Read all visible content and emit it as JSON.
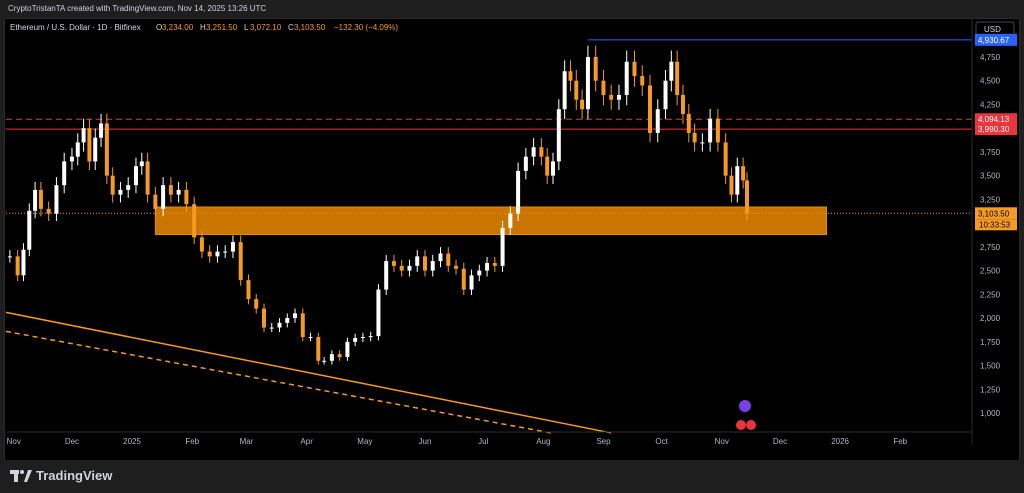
{
  "header": {
    "caption": "CryptoTristanTA created with TradingView.com, Nov 14, 2025 13:26 UTC"
  },
  "legend": {
    "symbol": "Ethereum / U.S. Dollar · 1D · Bitfinex",
    "o_label": "O",
    "o": "3,234.00",
    "h_label": "H",
    "h": "3,251.50",
    "l_label": "L",
    "l": "3,072.10",
    "c_label": "C",
    "c": "3,103.50",
    "change": "−132.30 (−4.09%)"
  },
  "currency": "USD",
  "footer": {
    "brand": "TradingView"
  },
  "colors": {
    "up": "#ffffff",
    "down": "#f59a23",
    "zone": "#c97500",
    "red_line": "#e8363c",
    "blue_line": "#2962ff",
    "trend": "#f59a23",
    "price_badge": "#f59a23",
    "red_badge": "#e8363c",
    "blue_badge": "#2962ff"
  },
  "chart_data": {
    "type": "candlestick",
    "y_ticks": [
      1000,
      1250,
      1500,
      1750,
      2000,
      2250,
      2500,
      2750,
      3000,
      3250,
      3500,
      3750,
      4000,
      4250,
      4500,
      4750
    ],
    "y_range": [
      800,
      5150
    ],
    "x_labels": [
      "Nov",
      "Dec",
      "2025",
      "Feb",
      "Mar",
      "Apr",
      "May",
      "Jun",
      "Jul",
      "Aug",
      "Sep",
      "Oct",
      "Nov",
      "Dec",
      "2026",
      "Feb"
    ],
    "x_label_dates": [
      "2024-11-01",
      "2024-12-01",
      "2025-01-01",
      "2025-02-01",
      "2025-03-01",
      "2025-04-01",
      "2025-05-01",
      "2025-06-01",
      "2025-07-01",
      "2025-08-01",
      "2025-09-01",
      "2025-10-01",
      "2025-11-01",
      "2025-12-01",
      "2026-01-01",
      "2026-02-01"
    ],
    "x_range": [
      "2024-10-28",
      "2026-03-10"
    ],
    "price_badges": [
      {
        "value": 4930.67,
        "label": "4,930.67",
        "style": "blue"
      },
      {
        "value": 4094.13,
        "label": "4,094.13",
        "style": "red"
      },
      {
        "value": 3990.3,
        "label": "3,990.30",
        "style": "red"
      },
      {
        "value": 3103.5,
        "label": "3,103.50",
        "style": "price"
      }
    ],
    "countdown": "10:33:53",
    "horizontal_lines": [
      {
        "value": 4930.67,
        "style": "blue-solid",
        "from": "2025-08-24"
      },
      {
        "value": 4094.13,
        "style": "red-dashed"
      },
      {
        "value": 3990.3,
        "style": "red-solid"
      },
      {
        "value": 3103.5,
        "style": "price-dotted"
      }
    ],
    "support_zone": {
      "from": "2025-01-13",
      "to": "2025-12-25",
      "low": 2880,
      "high": 3170
    },
    "trendlines": [
      {
        "from": [
          "2024-10-28",
          2060
        ],
        "to": [
          "2025-09-05",
          790
        ],
        "style": "solid"
      },
      {
        "from": [
          "2024-10-28",
          1860
        ],
        "to": [
          "2025-08-05",
          790
        ],
        "style": "dashed"
      }
    ],
    "series": [
      {
        "date": "2024-10-30",
        "close": 2650
      },
      {
        "date": "2024-11-03",
        "close": 2450
      },
      {
        "date": "2024-11-06",
        "close": 2720
      },
      {
        "date": "2024-11-09",
        "close": 3130
      },
      {
        "date": "2024-11-12",
        "close": 3350
      },
      {
        "date": "2024-11-15",
        "close": 3150
      },
      {
        "date": "2024-11-19",
        "close": 3100
      },
      {
        "date": "2024-11-23",
        "close": 3400
      },
      {
        "date": "2024-11-27",
        "close": 3650
      },
      {
        "date": "2024-12-01",
        "close": 3700
      },
      {
        "date": "2024-12-04",
        "close": 3850
      },
      {
        "date": "2024-12-07",
        "close": 4000
      },
      {
        "date": "2024-12-10",
        "close": 3650
      },
      {
        "date": "2024-12-13",
        "close": 3900
      },
      {
        "date": "2024-12-16",
        "close": 4050
      },
      {
        "date": "2024-12-19",
        "close": 3500
      },
      {
        "date": "2024-12-22",
        "close": 3300
      },
      {
        "date": "2024-12-26",
        "close": 3350
      },
      {
        "date": "2024-12-30",
        "close": 3400
      },
      {
        "date": "2025-01-03",
        "close": 3600
      },
      {
        "date": "2025-01-06",
        "close": 3650
      },
      {
        "date": "2025-01-09",
        "close": 3300
      },
      {
        "date": "2025-01-13",
        "close": 3150
      },
      {
        "date": "2025-01-17",
        "close": 3400
      },
      {
        "date": "2025-01-21",
        "close": 3300
      },
      {
        "date": "2025-01-25",
        "close": 3350
      },
      {
        "date": "2025-01-29",
        "close": 3200
      },
      {
        "date": "2025-02-02",
        "close": 2850
      },
      {
        "date": "2025-02-06",
        "close": 2700
      },
      {
        "date": "2025-02-10",
        "close": 2650
      },
      {
        "date": "2025-02-14",
        "close": 2700
      },
      {
        "date": "2025-02-18",
        "close": 2700
      },
      {
        "date": "2025-02-22",
        "close": 2800
      },
      {
        "date": "2025-02-26",
        "close": 2400
      },
      {
        "date": "2025-03-02",
        "close": 2200
      },
      {
        "date": "2025-03-06",
        "close": 2100
      },
      {
        "date": "2025-03-10",
        "close": 1900
      },
      {
        "date": "2025-03-14",
        "close": 1900
      },
      {
        "date": "2025-03-18",
        "close": 1950
      },
      {
        "date": "2025-03-22",
        "close": 2000
      },
      {
        "date": "2025-03-26",
        "close": 2050
      },
      {
        "date": "2025-03-30",
        "close": 1800
      },
      {
        "date": "2025-04-03",
        "close": 1800
      },
      {
        "date": "2025-04-07",
        "close": 1550
      },
      {
        "date": "2025-04-10",
        "close": 1550
      },
      {
        "date": "2025-04-14",
        "close": 1620
      },
      {
        "date": "2025-04-18",
        "close": 1590
      },
      {
        "date": "2025-04-22",
        "close": 1750
      },
      {
        "date": "2025-04-26",
        "close": 1790
      },
      {
        "date": "2025-04-30",
        "close": 1800
      },
      {
        "date": "2025-05-04",
        "close": 1810
      },
      {
        "date": "2025-05-08",
        "close": 2300
      },
      {
        "date": "2025-05-12",
        "close": 2600
      },
      {
        "date": "2025-05-16",
        "close": 2550
      },
      {
        "date": "2025-05-20",
        "close": 2500
      },
      {
        "date": "2025-05-24",
        "close": 2550
      },
      {
        "date": "2025-05-28",
        "close": 2650
      },
      {
        "date": "2025-06-01",
        "close": 2500
      },
      {
        "date": "2025-06-05",
        "close": 2600
      },
      {
        "date": "2025-06-09",
        "close": 2680
      },
      {
        "date": "2025-06-13",
        "close": 2550
      },
      {
        "date": "2025-06-17",
        "close": 2520
      },
      {
        "date": "2025-06-21",
        "close": 2300
      },
      {
        "date": "2025-06-25",
        "close": 2450
      },
      {
        "date": "2025-06-29",
        "close": 2500
      },
      {
        "date": "2025-07-03",
        "close": 2580
      },
      {
        "date": "2025-07-07",
        "close": 2550
      },
      {
        "date": "2025-07-11",
        "close": 2950
      },
      {
        "date": "2025-07-15",
        "close": 3100
      },
      {
        "date": "2025-07-19",
        "close": 3550
      },
      {
        "date": "2025-07-23",
        "close": 3700
      },
      {
        "date": "2025-07-27",
        "close": 3800
      },
      {
        "date": "2025-07-31",
        "close": 3700
      },
      {
        "date": "2025-08-03",
        "close": 3500
      },
      {
        "date": "2025-08-06",
        "close": 3650
      },
      {
        "date": "2025-08-09",
        "close": 4200
      },
      {
        "date": "2025-08-12",
        "close": 4600
      },
      {
        "date": "2025-08-15",
        "close": 4500
      },
      {
        "date": "2025-08-18",
        "close": 4300
      },
      {
        "date": "2025-08-21",
        "close": 4200
      },
      {
        "date": "2025-08-24",
        "close": 4750
      },
      {
        "date": "2025-08-28",
        "close": 4500
      },
      {
        "date": "2025-09-01",
        "close": 4350
      },
      {
        "date": "2025-09-05",
        "close": 4300
      },
      {
        "date": "2025-09-09",
        "close": 4350
      },
      {
        "date": "2025-09-13",
        "close": 4700
      },
      {
        "date": "2025-09-17",
        "close": 4550
      },
      {
        "date": "2025-09-21",
        "close": 4450
      },
      {
        "date": "2025-09-25",
        "close": 3950
      },
      {
        "date": "2025-09-29",
        "close": 4200
      },
      {
        "date": "2025-10-03",
        "close": 4500
      },
      {
        "date": "2025-10-06",
        "close": 4700
      },
      {
        "date": "2025-10-09",
        "close": 4350
      },
      {
        "date": "2025-10-12",
        "close": 4150
      },
      {
        "date": "2025-10-15",
        "close": 3950
      },
      {
        "date": "2025-10-18",
        "close": 3850
      },
      {
        "date": "2025-10-22",
        "close": 3850
      },
      {
        "date": "2025-10-26",
        "close": 4100
      },
      {
        "date": "2025-10-30",
        "close": 3850
      },
      {
        "date": "2025-11-03",
        "close": 3500
      },
      {
        "date": "2025-11-06",
        "close": 3300
      },
      {
        "date": "2025-11-09",
        "close": 3600
      },
      {
        "date": "2025-11-12",
        "close": 3450
      },
      {
        "date": "2025-11-14",
        "close": 3103.5
      }
    ]
  }
}
